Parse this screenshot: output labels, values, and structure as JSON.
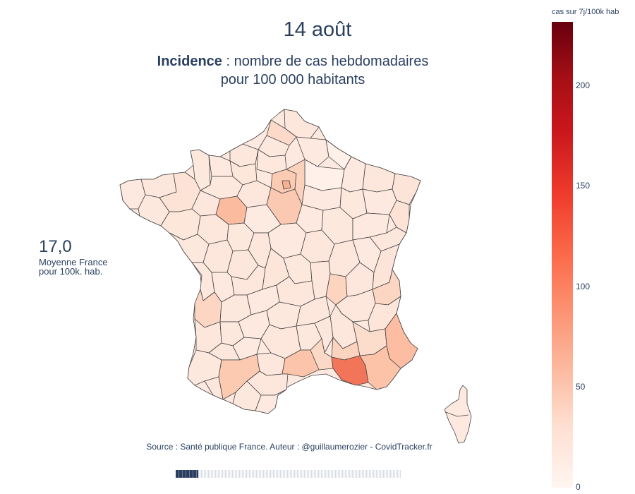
{
  "header": {
    "title": "14 août",
    "subtitle_bold": "Incidence",
    "subtitle_rest": " : nombre de cas hebdomadaires",
    "subtitle_line2": "pour 100 000 habitants"
  },
  "average": {
    "value": "17,0",
    "label_line1": "Moyenne France",
    "label_line2": "pour 100k. hab."
  },
  "source": "Source : Santé publique France. Auteur : @guillaumerozier - CovidTracker.fr",
  "colorbar": {
    "title": "cas sur 7j/100k hab",
    "ticks": [
      "0",
      "50",
      "100",
      "150",
      "200"
    ],
    "max": 232,
    "colors": [
      "#fff5f0",
      "#fee0d2",
      "#fcbba1",
      "#fc9272",
      "#fb6a4a",
      "#ef3b2c",
      "#cb181d",
      "#a50f15",
      "#67000d"
    ]
  },
  "slider": {
    "position": 0.1
  },
  "map": {
    "region": "France métropolitaine",
    "highlight_colors": {
      "bouches_du_rhone": "#f2755a",
      "sarthe": "#fbc1a6",
      "loiret": "#fcd2bd",
      "var": "#fcc8b1",
      "alpes_maritimes": "#fcc0a4",
      "herault": "#fcd0bb",
      "paris": "#f8b79c",
      "default_light": "#fde7dc",
      "default_lighter": "#fff2ec"
    }
  }
}
